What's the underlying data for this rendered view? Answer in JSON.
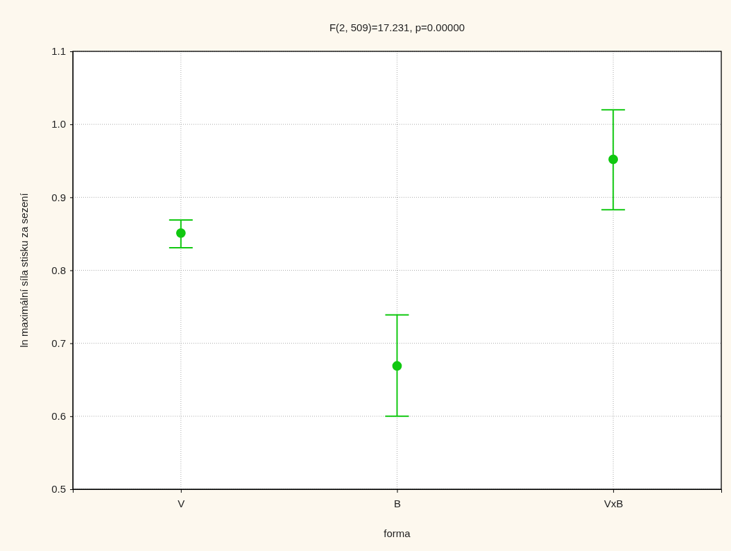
{
  "chart_data": {
    "type": "scatter",
    "title": "F(2, 509)=17.231, p=0.00000",
    "xlabel": "forma",
    "ylabel": "ln maximální síla stisku za sezení",
    "categories": [
      "V",
      "B",
      "VxB"
    ],
    "series": [
      {
        "color": "#10c810",
        "values": [
          0.851,
          0.669,
          0.952
        ],
        "errors": [
          [
            0.831,
            0.869
          ],
          [
            0.6,
            0.739
          ],
          [
            0.883,
            1.02
          ]
        ]
      }
    ],
    "ylim": [
      0.5,
      1.1
    ],
    "yticks": [
      0.5,
      0.6,
      0.7,
      0.8,
      0.9,
      {
        "value": 1,
        "label": "1.0"
      },
      1.1
    ],
    "grid": true,
    "marker": "circle"
  }
}
